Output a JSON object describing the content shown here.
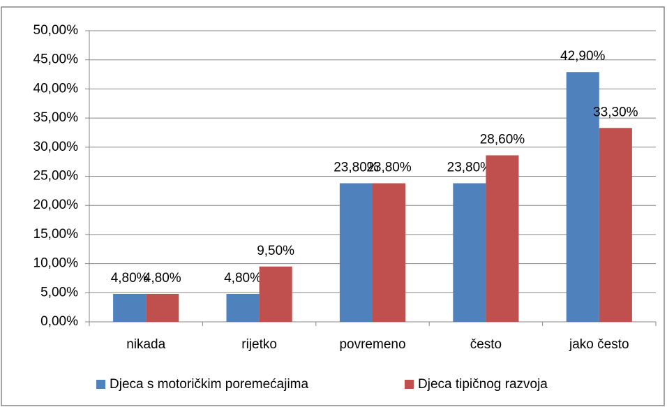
{
  "chart_data": {
    "type": "bar",
    "categories": [
      "nikada",
      "rijetko",
      "povremeno",
      "često",
      "jako često"
    ],
    "series": [
      {
        "name": "Djeca s motoričkim poremećajima",
        "color": "#4f81bd",
        "values": [
          4.8,
          4.8,
          23.8,
          23.8,
          42.9
        ],
        "value_labels": [
          "4,80%",
          "4,80%",
          "23,80%",
          "23,80%",
          "42,90%"
        ]
      },
      {
        "name": "Djeca tipičnog razvoja",
        "color": "#c0504d",
        "values": [
          4.8,
          9.5,
          23.8,
          28.6,
          33.3
        ],
        "value_labels": [
          "4,80%",
          "9,50%",
          "23,80%",
          "28,60%",
          "33,30%"
        ]
      }
    ],
    "ylim": [
      0,
      50
    ],
    "yticks": [
      {
        "value": 0,
        "label": "0,00%"
      },
      {
        "value": 5,
        "label": "5,00%"
      },
      {
        "value": 10,
        "label": "10,00%"
      },
      {
        "value": 15,
        "label": "15,00%"
      },
      {
        "value": 20,
        "label": "20,00%"
      },
      {
        "value": 25,
        "label": "25,00%"
      },
      {
        "value": 30,
        "label": "30,00%"
      },
      {
        "value": 35,
        "label": "35,00%"
      },
      {
        "value": 40,
        "label": "40,00%"
      },
      {
        "value": 45,
        "label": "45,00%"
      },
      {
        "value": 50,
        "label": "50,00%"
      }
    ],
    "grid": true,
    "legend": "bottom"
  }
}
